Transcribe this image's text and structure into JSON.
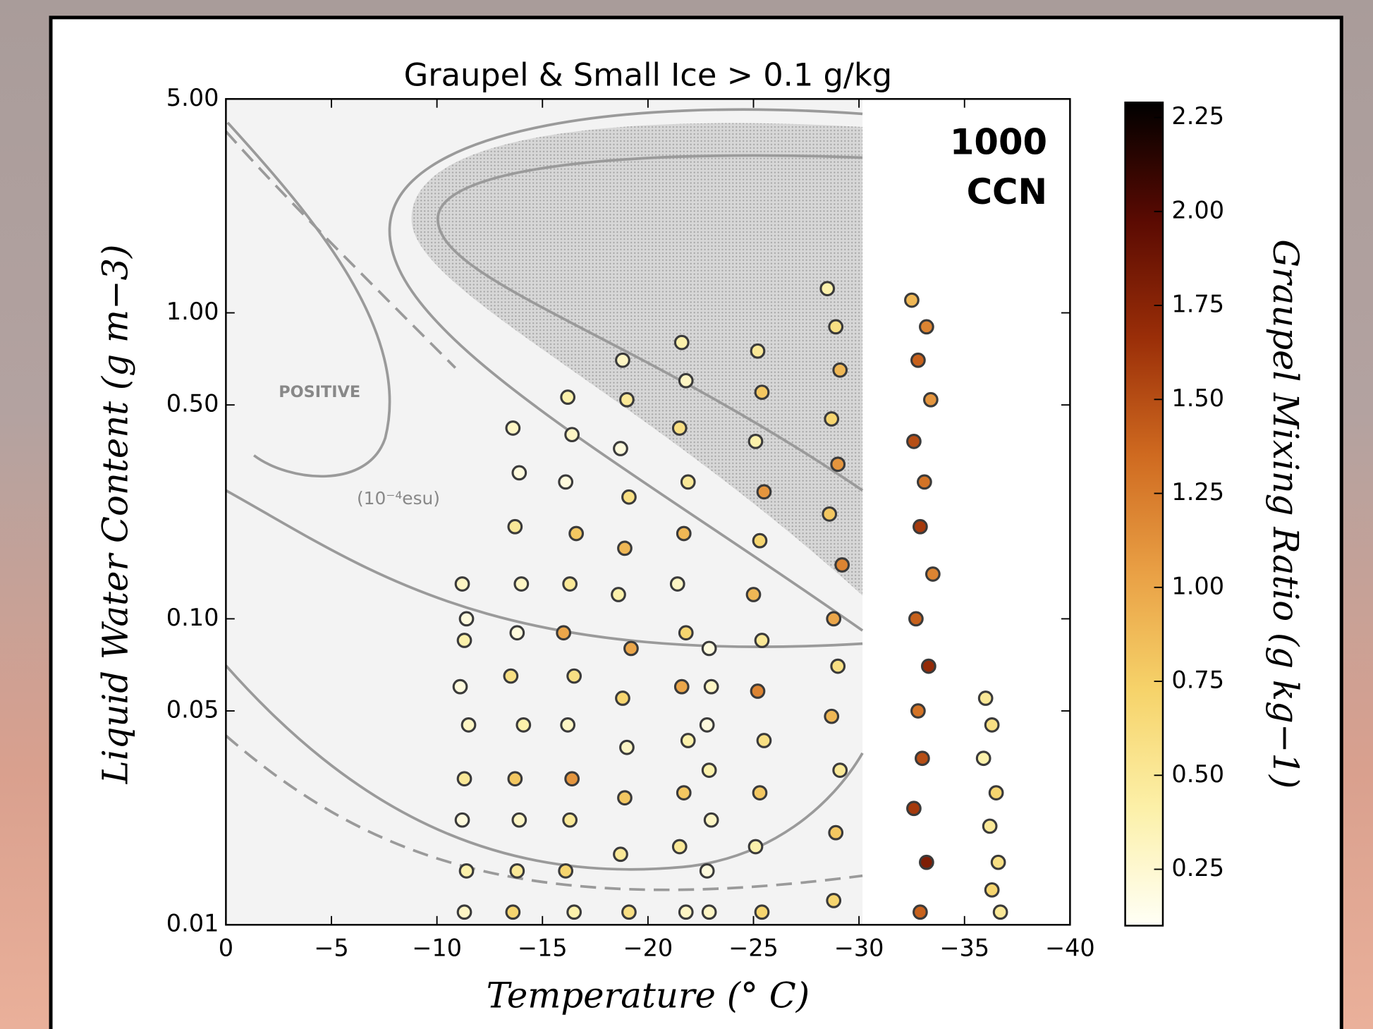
{
  "chart_data": {
    "type": "scatter",
    "title": "Graupel & Small Ice > 0.1 g/kg",
    "x_label": "Temperature (° C)",
    "y_label": "Liquid Water Content (g m−3)",
    "colorbar_label": "Graupel Mixing Ratio (g kg−1)",
    "annotation": [
      "1000",
      "CCN"
    ],
    "background_labels": [
      "POSITIVE",
      "(10⁻⁴esu)"
    ],
    "xlim": [
      0,
      -40
    ],
    "xticks": [
      0,
      {
        "value": -5,
        "label": "−5"
      },
      {
        "value": -10,
        "label": "−10"
      },
      {
        "value": -15,
        "label": "−15"
      },
      {
        "value": -20,
        "label": "−20"
      },
      {
        "value": -25,
        "label": "−25"
      },
      {
        "value": -30,
        "label": "−30"
      },
      {
        "value": -35,
        "label": "−35"
      },
      {
        "value": -40,
        "label": "−40"
      }
    ],
    "yscale": "log",
    "ylim": [
      0.01,
      5
    ],
    "yticks": [
      0.01,
      0.05,
      {
        "value": 0.1,
        "label": "0.10"
      },
      {
        "value": 0.5,
        "label": "0.50"
      },
      {
        "value": 1,
        "label": "1.00"
      },
      {
        "value": 5,
        "label": "5.00"
      }
    ],
    "clim": [
      0.1,
      2.29
    ],
    "cticks": [
      0.25,
      {
        "value": 0.5,
        "label": "0.50"
      },
      0.75,
      {
        "value": 1,
        "label": "1.00"
      },
      1.25,
      {
        "value": 1.5,
        "label": "1.50"
      },
      1.75,
      {
        "value": 2,
        "label": "2.00"
      },
      2.25
    ],
    "colormap": [
      "#fffff6",
      "#fcf0a8",
      "#f6d36a",
      "#e9a045",
      "#cf6a20",
      "#9a2e08",
      "#5a0a02",
      "#000000"
    ],
    "marker_edge_color": "#3a3a3a",
    "grid": false,
    "x": [
      -11.2,
      -11.4,
      -11.3,
      -11.1,
      -11.5,
      -11.3,
      -11.2,
      -11.4,
      -11.3,
      -13.6,
      -13.9,
      -13.7,
      -14.0,
      -13.8,
      -13.5,
      -14.1,
      -13.7,
      -13.9,
      -13.8,
      -13.6,
      -16.2,
      -16.4,
      -16.1,
      -16.6,
      -16.3,
      -16.0,
      -16.5,
      -16.2,
      -16.4,
      -16.3,
      -16.1,
      -16.5,
      -18.8,
      -19.0,
      -18.7,
      -19.1,
      -18.9,
      -18.6,
      -19.2,
      -18.8,
      -19.0,
      -18.9,
      -18.7,
      -19.1,
      -21.6,
      -21.8,
      -21.5,
      -21.9,
      -21.7,
      -21.4,
      -21.8,
      -21.6,
      -21.9,
      -21.7,
      -21.5,
      -21.8,
      -22.9,
      -23.0,
      -22.8,
      -22.9,
      -23.0,
      -22.8,
      -22.9,
      -25.2,
      -25.4,
      -25.1,
      -25.5,
      -25.3,
      -25.0,
      -25.4,
      -25.2,
      -25.5,
      -25.3,
      -25.1,
      -25.4,
      -28.5,
      -28.9,
      -29.1,
      -28.7,
      -29.0,
      -28.6,
      -29.2,
      -28.8,
      -29.0,
      -28.7,
      -29.1,
      -28.9,
      -28.8,
      -32.5,
      -33.2,
      -32.8,
      -33.4,
      -32.6,
      -33.1,
      -32.9,
      -33.5,
      -32.7,
      -33.3,
      -32.8,
      -33.0,
      -32.6,
      -33.2,
      -32.9,
      -36.0,
      -36.3,
      -35.9,
      -36.5,
      -36.2,
      -36.6,
      -36.3,
      -36.7
    ],
    "values": [
      0.13,
      0.1,
      0.085,
      0.06,
      0.045,
      0.03,
      0.022,
      0.015,
      0.011,
      0.42,
      0.3,
      0.2,
      0.13,
      0.09,
      0.065,
      0.045,
      0.03,
      0.022,
      0.015,
      0.011,
      0.53,
      0.4,
      0.28,
      0.19,
      0.13,
      0.09,
      0.065,
      0.045,
      0.03,
      0.022,
      0.015,
      0.011,
      0.7,
      0.52,
      0.36,
      0.25,
      0.17,
      0.12,
      0.08,
      0.055,
      0.038,
      0.026,
      0.017,
      0.011,
      0.8,
      0.6,
      0.42,
      0.28,
      0.19,
      0.13,
      0.09,
      0.06,
      0.04,
      0.027,
      0.018,
      0.011,
      0.08,
      0.06,
      0.045,
      0.032,
      0.022,
      0.015,
      0.011,
      0.75,
      0.55,
      0.38,
      0.26,
      0.18,
      0.12,
      0.085,
      0.058,
      0.04,
      0.027,
      0.018,
      0.011,
      1.2,
      0.9,
      0.65,
      0.45,
      0.32,
      0.22,
      0.15,
      0.1,
      0.07,
      0.048,
      0.032,
      0.02,
      0.012,
      1.1,
      0.9,
      0.7,
      0.52,
      0.38,
      0.28,
      0.2,
      0.14,
      0.1,
      0.07,
      0.05,
      0.035,
      0.024,
      0.016,
      0.011,
      0.055,
      0.045,
      0.035,
      0.027,
      0.021,
      0.016,
      0.013,
      0.011
    ],
    "color_values": [
      0.3,
      0.2,
      0.4,
      0.2,
      0.3,
      0.5,
      0.2,
      0.4,
      0.3,
      0.3,
      0.2,
      0.5,
      0.3,
      0.2,
      0.6,
      0.4,
      0.8,
      0.3,
      0.5,
      0.7,
      0.4,
      0.3,
      0.2,
      0.8,
      0.5,
      1.0,
      0.6,
      0.3,
      1.1,
      0.5,
      0.7,
      0.4,
      0.3,
      0.5,
      0.2,
      0.6,
      0.9,
      0.4,
      1.0,
      0.7,
      0.3,
      0.8,
      0.5,
      0.6,
      0.4,
      0.3,
      0.6,
      0.5,
      0.9,
      0.3,
      0.7,
      1.0,
      0.4,
      0.8,
      0.5,
      0.3,
      0.2,
      0.3,
      0.2,
      0.4,
      0.3,
      0.2,
      0.3,
      0.5,
      0.8,
      0.4,
      1.1,
      0.7,
      0.9,
      0.5,
      1.2,
      0.6,
      0.8,
      0.4,
      0.7,
      0.4,
      0.6,
      0.9,
      0.7,
      1.1,
      0.8,
      1.2,
      1.0,
      0.6,
      0.9,
      0.5,
      0.8,
      0.7,
      0.9,
      1.2,
      1.4,
      1.1,
      1.5,
      1.3,
      1.6,
      1.2,
      1.4,
      1.7,
      1.3,
      1.5,
      1.6,
      1.8,
      1.4,
      0.5,
      0.6,
      0.4,
      0.7,
      0.5,
      0.6,
      0.7,
      0.5
    ]
  }
}
